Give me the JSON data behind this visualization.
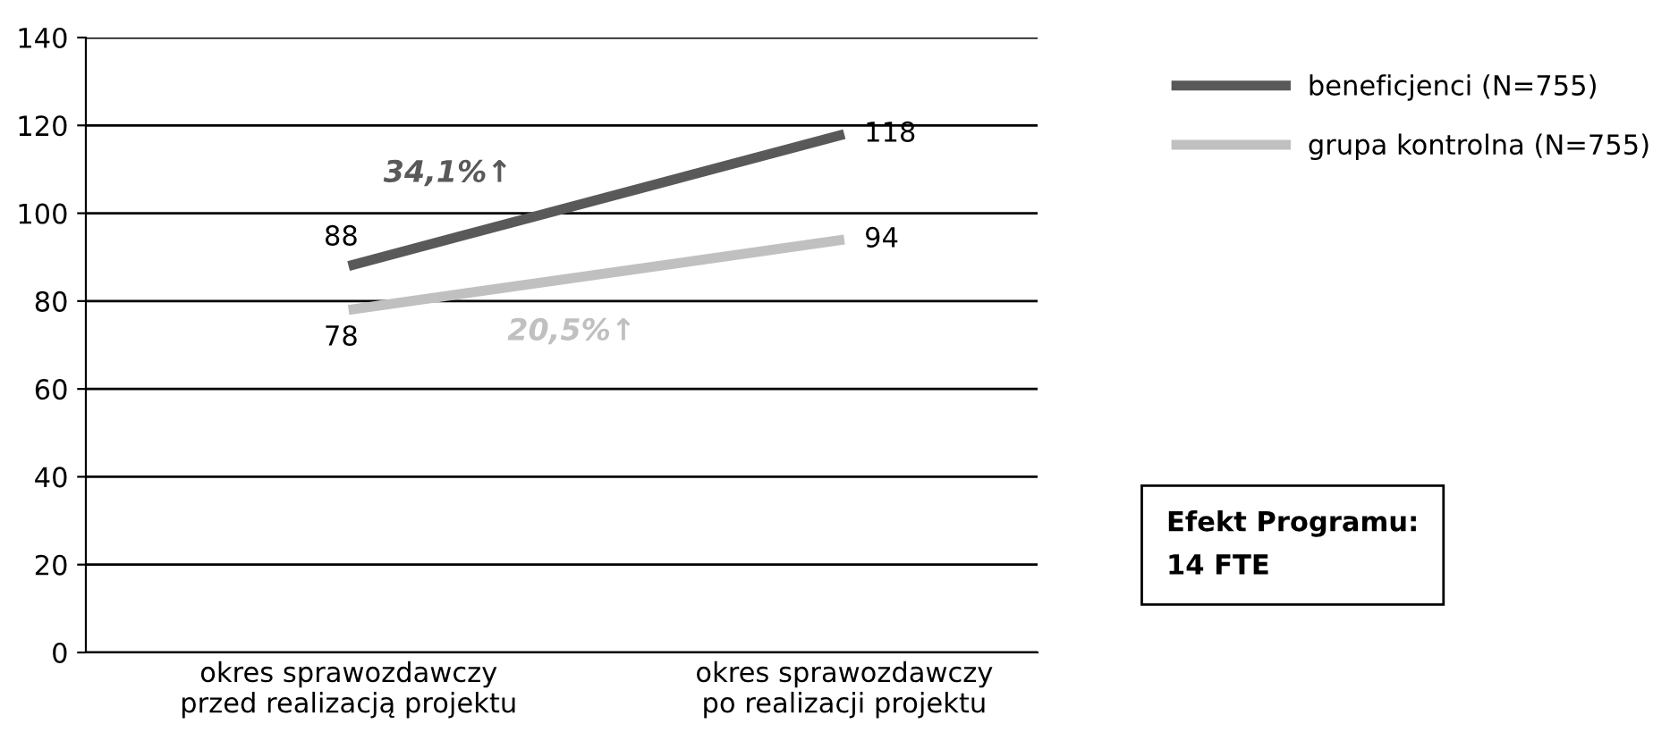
{
  "chart_data": {
    "type": "line",
    "categories": [
      "okres sprawozdawczy\nprzed realizacją projektu",
      "okres sprawozdawczy\npo realizacji projektu"
    ],
    "series": [
      {
        "name": "beneficjenci (N=755)",
        "color": "#595959",
        "values": [
          88,
          118
        ]
      },
      {
        "name": "grupa kontrolna (N=755)",
        "color": "#c0c0c0",
        "values": [
          78,
          94
        ]
      }
    ],
    "ylim": [
      0,
      140
    ],
    "yticks": [
      0,
      20,
      40,
      60,
      80,
      100,
      120,
      140
    ],
    "grid": "y",
    "legend": "top right",
    "data_labels": true,
    "marker": "none",
    "line_style": "solid",
    "annotations": [
      "34,1%↑",
      "20,5%↑",
      "Efekt Programu:\n14 FTE"
    ]
  }
}
